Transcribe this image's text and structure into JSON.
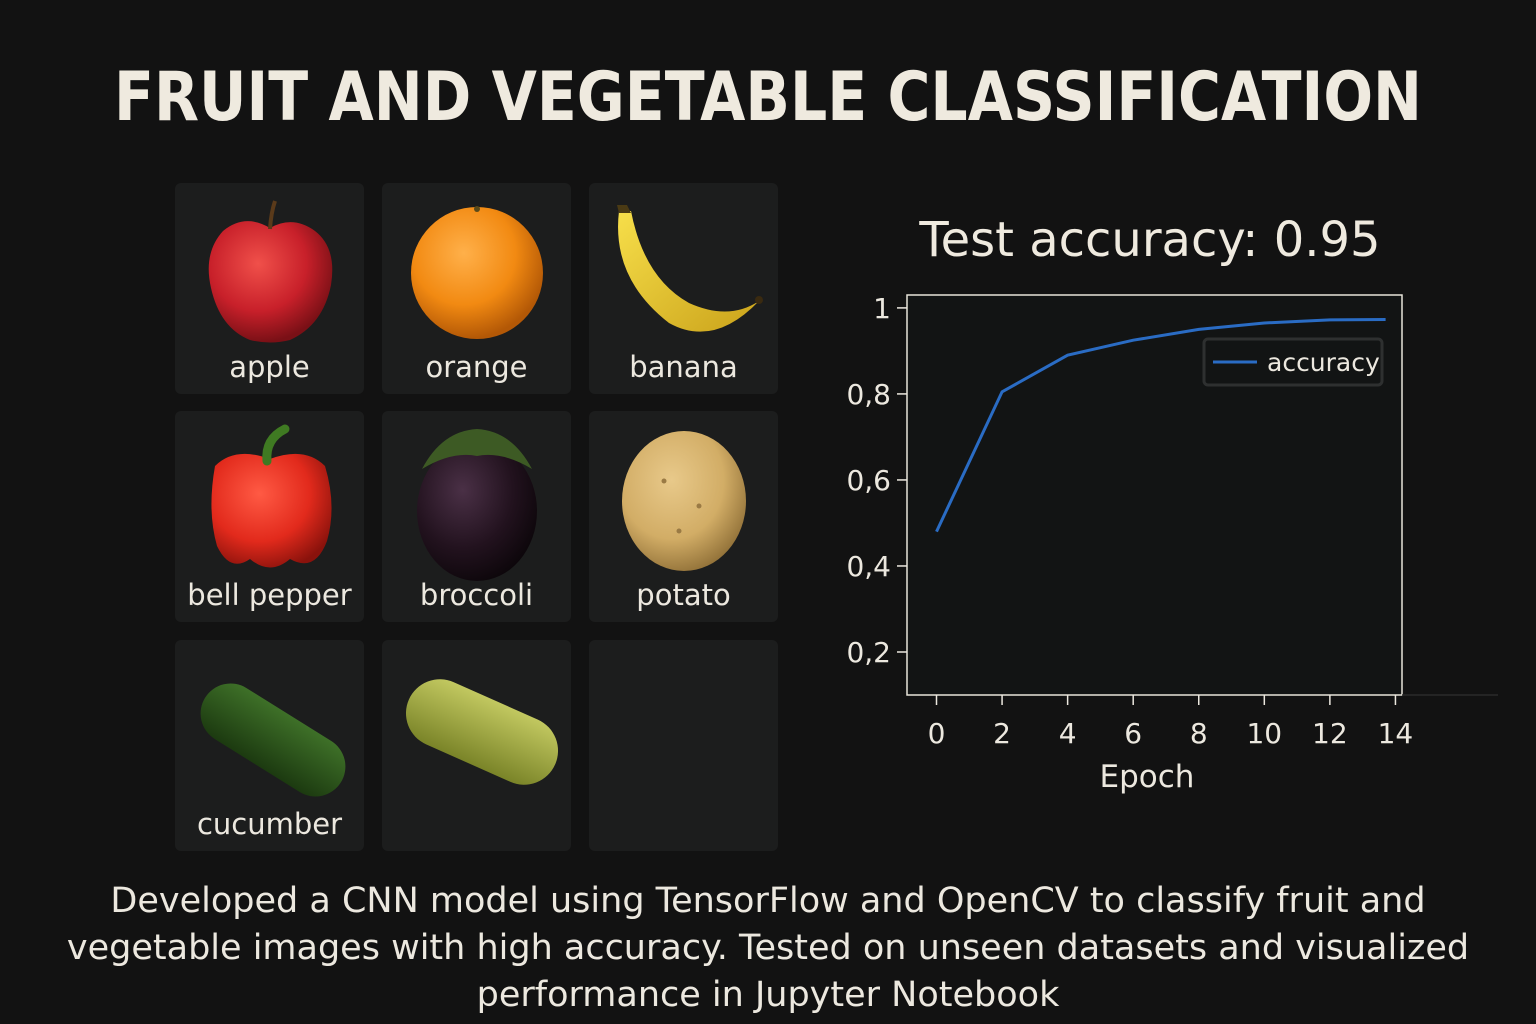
{
  "title": "FRUIT AND VEGETABLE CLASSIFICATION",
  "tiles": [
    {
      "label": "apple",
      "icon": "apple-icon",
      "color": "#c8202a"
    },
    {
      "label": "orange",
      "icon": "orange-icon",
      "color": "#f28a12"
    },
    {
      "label": "banana",
      "icon": "banana-icon",
      "color": "#efcf2e"
    },
    {
      "label": "bell pepper",
      "icon": "bell-pepper-icon",
      "color": "#e22a1c"
    },
    {
      "label": "broccoli",
      "icon": "eggplant-icon",
      "color": "#2a1626"
    },
    {
      "label": "potato",
      "icon": "potato-icon",
      "color": "#d2ad66"
    },
    {
      "label": "cucumber",
      "icon": "cucumber-icon",
      "color": "#2f5a1e"
    },
    {
      "label": "",
      "icon": "pickle-icon",
      "color": "#a8b048"
    },
    {
      "label": "",
      "icon": "",
      "color": ""
    }
  ],
  "chart_data": {
    "type": "line",
    "title": "Test accuracy: 0.95",
    "xlabel": "Epoch",
    "ylabel": "",
    "x": [
      0,
      2,
      4,
      6,
      8,
      10,
      12,
      13.7
    ],
    "series": [
      {
        "name": "accuracy",
        "values": [
          0.48,
          0.805,
          0.89,
          0.925,
          0.95,
          0.965,
          0.972,
          0.973
        ],
        "color": "#2a6cc4"
      }
    ],
    "xticks": [
      0,
      2,
      4,
      6,
      8,
      10,
      12,
      14
    ],
    "xtick_labels": [
      "0",
      "2",
      "4",
      "6",
      "8",
      "10",
      "12",
      "14"
    ],
    "yticks": [
      0.2,
      0.4,
      0.6,
      0.8,
      1
    ],
    "ytick_labels": [
      "0,2",
      "0,4",
      "0,6",
      "0,8",
      "1"
    ],
    "xlim": [
      -0.9,
      14.2
    ],
    "ylim": [
      0.1,
      1.03
    ],
    "legend": "top-right",
    "grid": false
  },
  "caption": "Developed a CNN model using TensorFlow and OpenCV to classify fruit and vegetable images with high accuracy. Tested on unseen datasets and visualized performance in Jupyter Notebook"
}
